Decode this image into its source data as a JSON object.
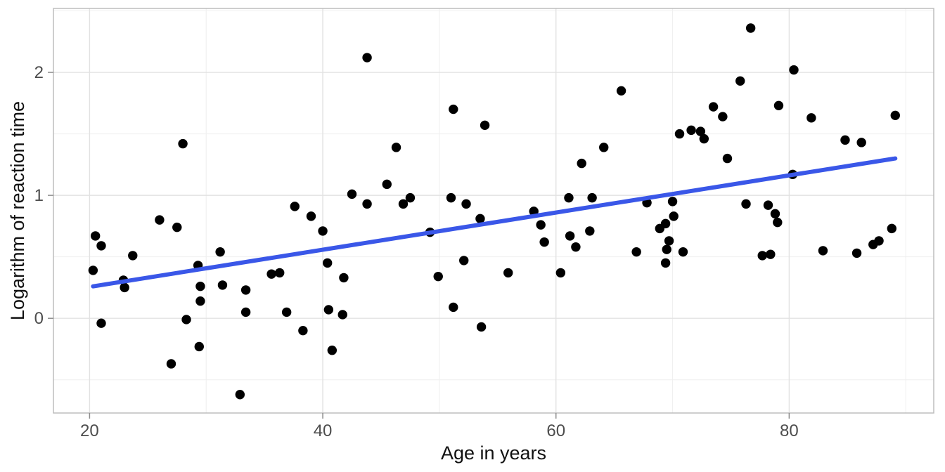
{
  "chart_data": {
    "type": "scatter",
    "title": "",
    "xlabel": "Age in years",
    "ylabel": "Logarithm of reaction time",
    "xlim": [
      16.9,
      92.4
    ],
    "ylim": [
      -0.77,
      2.52
    ],
    "x_ticks": [
      20,
      40,
      60,
      80
    ],
    "x_minor_ticks": [
      30,
      50,
      70,
      90
    ],
    "y_ticks": [
      0,
      1,
      2
    ],
    "y_minor_ticks": [
      -0.5,
      0.5,
      1.5,
      2.5
    ],
    "grid": "on",
    "legend": "none",
    "background_color": "#ffffff",
    "point_color": "#000000",
    "trend_line_color": "#3A57E8",
    "major_grid_color": "#e2e2e2",
    "minor_grid_color": "#efefef",
    "panel_border_color": "#bdbdbd",
    "tick_mark_color": "#8c8c8c",
    "tick_text_color": "#4d4d4d",
    "trend_line": {
      "x1": 20.3,
      "y1": 0.26,
      "x2": 89.1,
      "y2": 1.3
    },
    "points": [
      [
        20.3,
        0.39
      ],
      [
        20.5,
        0.67
      ],
      [
        21.0,
        0.59
      ],
      [
        21.0,
        -0.04
      ],
      [
        22.9,
        0.31
      ],
      [
        23.0,
        0.25
      ],
      [
        23.7,
        0.51
      ],
      [
        26.0,
        0.8
      ],
      [
        27.0,
        -0.37
      ],
      [
        27.5,
        0.74
      ],
      [
        28.0,
        1.42
      ],
      [
        28.3,
        -0.01
      ],
      [
        29.3,
        0.43
      ],
      [
        29.4,
        -0.23
      ],
      [
        29.5,
        0.26
      ],
      [
        29.5,
        0.14
      ],
      [
        31.2,
        0.54
      ],
      [
        31.4,
        0.27
      ],
      [
        32.9,
        -0.62
      ],
      [
        33.4,
        0.23
      ],
      [
        33.4,
        0.05
      ],
      [
        35.6,
        0.36
      ],
      [
        36.3,
        0.37
      ],
      [
        36.9,
        0.05
      ],
      [
        37.6,
        0.91
      ],
      [
        38.3,
        -0.1
      ],
      [
        39.0,
        0.83
      ],
      [
        40.0,
        0.71
      ],
      [
        40.4,
        0.45
      ],
      [
        40.5,
        0.07
      ],
      [
        40.8,
        -0.26
      ],
      [
        41.7,
        0.03
      ],
      [
        41.8,
        0.33
      ],
      [
        42.5,
        1.01
      ],
      [
        43.8,
        2.12
      ],
      [
        43.8,
        0.93
      ],
      [
        45.5,
        1.09
      ],
      [
        46.3,
        1.39
      ],
      [
        46.9,
        0.93
      ],
      [
        47.5,
        0.98
      ],
      [
        49.2,
        0.7
      ],
      [
        49.9,
        0.34
      ],
      [
        51.0,
        0.98
      ],
      [
        51.2,
        1.7
      ],
      [
        51.2,
        0.09
      ],
      [
        52.1,
        0.47
      ],
      [
        52.3,
        0.93
      ],
      [
        53.5,
        0.81
      ],
      [
        53.6,
        -0.07
      ],
      [
        53.9,
        1.57
      ],
      [
        55.9,
        0.37
      ],
      [
        58.1,
        0.87
      ],
      [
        58.7,
        0.76
      ],
      [
        59.0,
        0.62
      ],
      [
        60.4,
        0.37
      ],
      [
        61.1,
        0.98
      ],
      [
        61.2,
        0.67
      ],
      [
        61.7,
        0.58
      ],
      [
        62.2,
        1.26
      ],
      [
        62.9,
        0.71
      ],
      [
        63.1,
        0.98
      ],
      [
        64.1,
        1.39
      ],
      [
        65.6,
        1.85
      ],
      [
        66.9,
        0.54
      ],
      [
        67.8,
        0.94
      ],
      [
        68.9,
        0.73
      ],
      [
        69.4,
        0.77
      ],
      [
        69.4,
        0.45
      ],
      [
        69.5,
        0.56
      ],
      [
        69.7,
        0.63
      ],
      [
        70.0,
        0.95
      ],
      [
        70.1,
        0.83
      ],
      [
        70.6,
        1.5
      ],
      [
        70.9,
        0.54
      ],
      [
        71.6,
        1.53
      ],
      [
        72.4,
        1.52
      ],
      [
        72.7,
        1.46
      ],
      [
        73.5,
        1.72
      ],
      [
        74.3,
        1.64
      ],
      [
        74.7,
        1.3
      ],
      [
        75.8,
        1.93
      ],
      [
        76.3,
        0.93
      ],
      [
        76.7,
        2.36
      ],
      [
        77.7,
        0.51
      ],
      [
        78.2,
        0.92
      ],
      [
        78.4,
        0.52
      ],
      [
        78.8,
        0.85
      ],
      [
        79.0,
        0.78
      ],
      [
        79.1,
        1.73
      ],
      [
        80.3,
        1.17
      ],
      [
        80.4,
        2.02
      ],
      [
        81.9,
        1.63
      ],
      [
        82.9,
        0.55
      ],
      [
        84.8,
        1.45
      ],
      [
        85.8,
        0.53
      ],
      [
        86.2,
        1.43
      ],
      [
        87.2,
        0.6
      ],
      [
        87.7,
        0.63
      ],
      [
        88.8,
        0.73
      ],
      [
        89.1,
        1.65
      ]
    ]
  }
}
